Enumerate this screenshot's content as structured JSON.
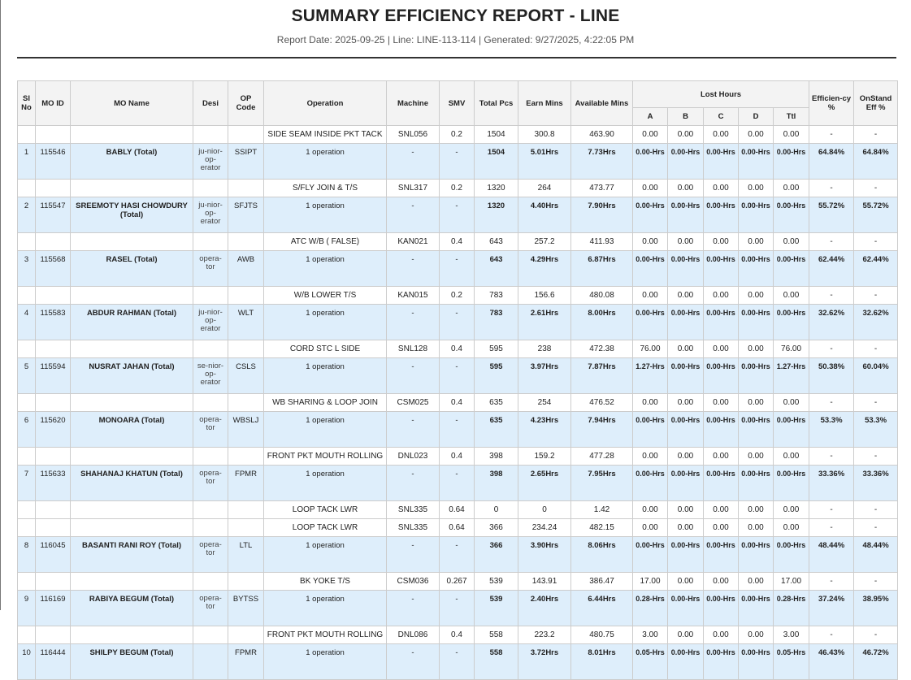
{
  "report": {
    "title": "SUMMARY EFFICIENCY REPORT - LINE",
    "subtitle": "Report Date: 2025-09-25 | Line: LINE-113-114 | Generated: 9/27/2025, 4:22:05 PM"
  },
  "columns": {
    "sl": "Sl No",
    "mo_id": "MO ID",
    "mo_name": "MO Name",
    "desi": "Desi",
    "op_code": "OP Code",
    "operation": "Operation",
    "machine": "Machine",
    "smv": "SMV",
    "total_pcs": "Total Pcs",
    "earn_mins": "Earn Mins",
    "avail_mins": "Available Mins",
    "lost_hours": "Lost Hours",
    "efficiency": "Efficien-cy %",
    "onstand": "OnStand Eff %",
    "lost_sub": [
      "A",
      "B",
      "C",
      "D",
      "Ttl"
    ]
  },
  "rows": [
    {
      "type": "detail",
      "operation": "SIDE SEAM INSIDE PKT TACK",
      "machine": "SNL056",
      "smv": "0.2",
      "pcs": "1504",
      "earn": "300.8",
      "avail": "463.90",
      "a": "0.00",
      "b": "0.00",
      "c": "0.00",
      "d": "0.00",
      "ttl": "0.00",
      "eff": "-",
      "onstand": "-"
    },
    {
      "type": "total",
      "sl": "1",
      "mo_id": "115546",
      "name": "BABLY (Total)",
      "desi": "ju-nior-op-erator",
      "op": "SSIPT",
      "operation": "1 operation",
      "machine": "-",
      "smv": "-",
      "pcs": "1504",
      "earn": "5.01Hrs",
      "avail": "7.73Hrs",
      "a": "0.00-Hrs",
      "b": "0.00-Hrs",
      "c": "0.00-Hrs",
      "d": "0.00-Hrs",
      "ttl": "0.00-Hrs",
      "eff": "64.84%",
      "onstand": "64.84%"
    },
    {
      "type": "detail",
      "operation": "S/FLY JOIN & T/S",
      "machine": "SNL317",
      "smv": "0.2",
      "pcs": "1320",
      "earn": "264",
      "avail": "473.77",
      "a": "0.00",
      "b": "0.00",
      "c": "0.00",
      "d": "0.00",
      "ttl": "0.00",
      "eff": "-",
      "onstand": "-"
    },
    {
      "type": "total",
      "sl": "2",
      "mo_id": "115547",
      "name": "SREEMOTY HASI CHOWDURY (Total)",
      "desi": "ju-nior-op-erator",
      "op": "SFJTS",
      "operation": "1 operation",
      "machine": "-",
      "smv": "-",
      "pcs": "1320",
      "earn": "4.40Hrs",
      "avail": "7.90Hrs",
      "a": "0.00-Hrs",
      "b": "0.00-Hrs",
      "c": "0.00-Hrs",
      "d": "0.00-Hrs",
      "ttl": "0.00-Hrs",
      "eff": "55.72%",
      "onstand": "55.72%"
    },
    {
      "type": "detail",
      "operation": "ATC W/B ( FALSE)",
      "machine": "KAN021",
      "smv": "0.4",
      "pcs": "643",
      "earn": "257.2",
      "avail": "411.93",
      "a": "0.00",
      "b": "0.00",
      "c": "0.00",
      "d": "0.00",
      "ttl": "0.00",
      "eff": "-",
      "onstand": "-"
    },
    {
      "type": "total",
      "sl": "3",
      "mo_id": "115568",
      "name": "RASEL (Total)",
      "desi": "opera-tor",
      "op": "AWB",
      "operation": "1 operation",
      "machine": "-",
      "smv": "-",
      "pcs": "643",
      "earn": "4.29Hrs",
      "avail": "6.87Hrs",
      "a": "0.00-Hrs",
      "b": "0.00-Hrs",
      "c": "0.00-Hrs",
      "d": "0.00-Hrs",
      "ttl": "0.00-Hrs",
      "eff": "62.44%",
      "onstand": "62.44%"
    },
    {
      "type": "detail",
      "operation": "W/B LOWER T/S",
      "machine": "KAN015",
      "smv": "0.2",
      "pcs": "783",
      "earn": "156.6",
      "avail": "480.08",
      "a": "0.00",
      "b": "0.00",
      "c": "0.00",
      "d": "0.00",
      "ttl": "0.00",
      "eff": "-",
      "onstand": "-"
    },
    {
      "type": "total",
      "sl": "4",
      "mo_id": "115583",
      "name": "ABDUR RAHMAN (Total)",
      "desi": "ju-nior-op-erator",
      "op": "WLT",
      "operation": "1 operation",
      "machine": "-",
      "smv": "-",
      "pcs": "783",
      "earn": "2.61Hrs",
      "avail": "8.00Hrs",
      "a": "0.00-Hrs",
      "b": "0.00-Hrs",
      "c": "0.00-Hrs",
      "d": "0.00-Hrs",
      "ttl": "0.00-Hrs",
      "eff": "32.62%",
      "onstand": "32.62%"
    },
    {
      "type": "detail",
      "operation": "CORD STC L SIDE",
      "machine": "SNL128",
      "smv": "0.4",
      "pcs": "595",
      "earn": "238",
      "avail": "472.38",
      "a": "76.00",
      "b": "0.00",
      "c": "0.00",
      "d": "0.00",
      "ttl": "76.00",
      "eff": "-",
      "onstand": "-"
    },
    {
      "type": "total",
      "sl": "5",
      "mo_id": "115594",
      "name": "NUSRAT JAHAN (Total)",
      "desi": "se-nior-op-erator",
      "op": "CSLS",
      "operation": "1 operation",
      "machine": "-",
      "smv": "-",
      "pcs": "595",
      "earn": "3.97Hrs",
      "avail": "7.87Hrs",
      "a": "1.27-Hrs",
      "b": "0.00-Hrs",
      "c": "0.00-Hrs",
      "d": "0.00-Hrs",
      "ttl": "1.27-Hrs",
      "eff": "50.38%",
      "onstand": "60.04%"
    },
    {
      "type": "detail",
      "operation": "WB SHARING & LOOP JOIN",
      "machine": "CSM025",
      "smv": "0.4",
      "pcs": "635",
      "earn": "254",
      "avail": "476.52",
      "a": "0.00",
      "b": "0.00",
      "c": "0.00",
      "d": "0.00",
      "ttl": "0.00",
      "eff": "-",
      "onstand": "-"
    },
    {
      "type": "total",
      "sl": "6",
      "mo_id": "115620",
      "name": "MONOARA (Total)",
      "desi": "opera-tor",
      "op": "WBSLJ",
      "operation": "1 operation",
      "machine": "-",
      "smv": "-",
      "pcs": "635",
      "earn": "4.23Hrs",
      "avail": "7.94Hrs",
      "a": "0.00-Hrs",
      "b": "0.00-Hrs",
      "c": "0.00-Hrs",
      "d": "0.00-Hrs",
      "ttl": "0.00-Hrs",
      "eff": "53.3%",
      "onstand": "53.3%"
    },
    {
      "type": "detail",
      "operation": "FRONT PKT MOUTH ROLLING",
      "machine": "DNL023",
      "smv": "0.4",
      "pcs": "398",
      "earn": "159.2",
      "avail": "477.28",
      "a": "0.00",
      "b": "0.00",
      "c": "0.00",
      "d": "0.00",
      "ttl": "0.00",
      "eff": "-",
      "onstand": "-"
    },
    {
      "type": "total",
      "sl": "7",
      "mo_id": "115633",
      "name": "SHAHANAJ KHATUN (Total)",
      "desi": "opera-tor",
      "op": "FPMR",
      "operation": "1 operation",
      "machine": "-",
      "smv": "-",
      "pcs": "398",
      "earn": "2.65Hrs",
      "avail": "7.95Hrs",
      "a": "0.00-Hrs",
      "b": "0.00-Hrs",
      "c": "0.00-Hrs",
      "d": "0.00-Hrs",
      "ttl": "0.00-Hrs",
      "eff": "33.36%",
      "onstand": "33.36%"
    },
    {
      "type": "detail",
      "operation": "LOOP TACK LWR",
      "machine": "SNL335",
      "smv": "0.64",
      "pcs": "0",
      "earn": "0",
      "avail": "1.42",
      "a": "0.00",
      "b": "0.00",
      "c": "0.00",
      "d": "0.00",
      "ttl": "0.00",
      "eff": "-",
      "onstand": "-"
    },
    {
      "type": "detail",
      "operation": "LOOP TACK LWR",
      "machine": "SNL335",
      "smv": "0.64",
      "pcs": "366",
      "earn": "234.24",
      "avail": "482.15",
      "a": "0.00",
      "b": "0.00",
      "c": "0.00",
      "d": "0.00",
      "ttl": "0.00",
      "eff": "-",
      "onstand": "-"
    },
    {
      "type": "total",
      "sl": "8",
      "mo_id": "116045",
      "name": "BASANTI RANI ROY (Total)",
      "desi": "opera-tor",
      "op": "LTL",
      "operation": "1 operation",
      "machine": "-",
      "smv": "-",
      "pcs": "366",
      "earn": "3.90Hrs",
      "avail": "8.06Hrs",
      "a": "0.00-Hrs",
      "b": "0.00-Hrs",
      "c": "0.00-Hrs",
      "d": "0.00-Hrs",
      "ttl": "0.00-Hrs",
      "eff": "48.44%",
      "onstand": "48.44%"
    },
    {
      "type": "detail",
      "operation": "BK YOKE T/S",
      "machine": "CSM036",
      "smv": "0.267",
      "pcs": "539",
      "earn": "143.91",
      "avail": "386.47",
      "a": "17.00",
      "b": "0.00",
      "c": "0.00",
      "d": "0.00",
      "ttl": "17.00",
      "eff": "-",
      "onstand": "-"
    },
    {
      "type": "total",
      "sl": "9",
      "mo_id": "116169",
      "name": "RABIYA BEGUM (Total)",
      "desi": "opera-tor",
      "op": "BYTSS",
      "operation": "1 operation",
      "machine": "-",
      "smv": "-",
      "pcs": "539",
      "earn": "2.40Hrs",
      "avail": "6.44Hrs",
      "a": "0.28-Hrs",
      "b": "0.00-Hrs",
      "c": "0.00-Hrs",
      "d": "0.00-Hrs",
      "ttl": "0.28-Hrs",
      "eff": "37.24%",
      "onstand": "38.95%"
    },
    {
      "type": "detail",
      "operation": "FRONT PKT MOUTH ROLLING",
      "machine": "DNL086",
      "smv": "0.4",
      "pcs": "558",
      "earn": "223.2",
      "avail": "480.75",
      "a": "3.00",
      "b": "0.00",
      "c": "0.00",
      "d": "0.00",
      "ttl": "3.00",
      "eff": "-",
      "onstand": "-"
    },
    {
      "type": "total",
      "sl": "10",
      "mo_id": "116444",
      "name": "SHILPY BEGUM (Total)",
      "desi": "",
      "op": "FPMR",
      "operation": "1 operation",
      "machine": "-",
      "smv": "-",
      "pcs": "558",
      "earn": "3.72Hrs",
      "avail": "8.01Hrs",
      "a": "0.05-Hrs",
      "b": "0.00-Hrs",
      "c": "0.00-Hrs",
      "d": "0.00-Hrs",
      "ttl": "0.05-Hrs",
      "eff": "46.43%",
      "onstand": "46.72%"
    }
  ]
}
